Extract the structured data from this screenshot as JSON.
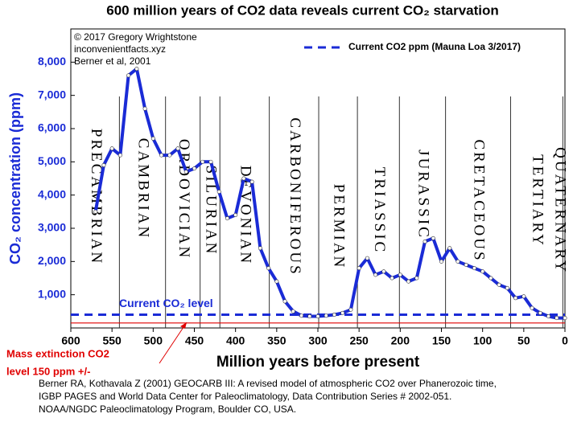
{
  "chart_data": {
    "type": "line",
    "title": "600 million years of CO2 data reveals current CO₂ starvation",
    "credits": [
      "© 2017 Gregory Wrightstone",
      "inconvenientfacts.xyz",
      "Berner et al, 2001"
    ],
    "x_label": "Million years before present",
    "y_label": "CO₂ concentration (ppm)",
    "xlim": [
      600,
      0
    ],
    "ylim": [
      0,
      9000
    ],
    "xticks": [
      600,
      550,
      500,
      450,
      400,
      350,
      300,
      250,
      200,
      150,
      100,
      50,
      0
    ],
    "yticks": [
      {
        "value": 1000,
        "label": "1,000"
      },
      {
        "value": 2000,
        "label": "2,000"
      },
      {
        "value": 3000,
        "label": "3,000"
      },
      {
        "value": 4000,
        "label": "4,000"
      },
      {
        "value": 5000,
        "label": "5,000"
      },
      {
        "value": 6000,
        "label": "6,000"
      },
      {
        "value": 7000,
        "label": "7,000"
      },
      {
        "value": 8000,
        "label": "8,000"
      }
    ],
    "x": [
      570,
      560,
      550,
      540,
      530,
      520,
      510,
      500,
      490,
      480,
      470,
      460,
      450,
      440,
      430,
      420,
      410,
      400,
      390,
      380,
      370,
      360,
      350,
      340,
      330,
      320,
      310,
      300,
      290,
      280,
      270,
      260,
      250,
      240,
      230,
      220,
      210,
      200,
      190,
      180,
      170,
      160,
      150,
      140,
      130,
      120,
      110,
      100,
      90,
      80,
      70,
      60,
      50,
      40,
      30,
      20,
      10,
      0
    ],
    "values": [
      3500,
      4900,
      5400,
      5200,
      7600,
      7800,
      6600,
      5700,
      5200,
      5200,
      5400,
      4700,
      4800,
      5000,
      5000,
      4100,
      3300,
      3400,
      4500,
      4400,
      2400,
      1800,
      1400,
      800,
      500,
      370,
      350,
      350,
      370,
      400,
      450,
      550,
      1800,
      2100,
      1600,
      1700,
      1500,
      1600,
      1400,
      1500,
      2600,
      2700,
      2000,
      2400,
      2000,
      1900,
      1800,
      1700,
      1500,
      1300,
      1200,
      900,
      950,
      600,
      450,
      350,
      300,
      300
    ],
    "color": "#1a2bd6",
    "periods": [
      "PRECAMBRIAN",
      "CAMBRIAN",
      "ORDOVICIAN",
      "SILURIAN",
      "DEVONIAN",
      "CARBONIFEROUS",
      "PERMIAN",
      "TRIASSIC",
      "JURASSIC",
      "CRETACEOUS",
      "TERTIARY",
      "QUATERNARY"
    ],
    "period_boundaries": [
      541,
      485,
      443,
      419,
      359,
      299,
      252,
      201,
      145,
      66,
      2.6
    ],
    "current_level": {
      "value": 400,
      "legend": "Current CO2 ppm (Mauna Loa 3/2017)",
      "label": "Current CO₂ level",
      "color": "#1a2bd6"
    },
    "mass_extinction": {
      "value": 150,
      "label": [
        "Mass extinction CO2",
        "level 150 ppm +/-"
      ],
      "color": "#e00000"
    },
    "source": [
      "Berner RA, Kothavala Z (2001) GEOCARB III: A revised model of atmospheric CO2 over Phanerozoic time,",
      "IGBP PAGES and World Data Center for Paleoclimatology, Data Contribution Series # 2002-051.",
      "NOAA/NGDC Paleoclimatology Program, Boulder CO, USA."
    ]
  }
}
